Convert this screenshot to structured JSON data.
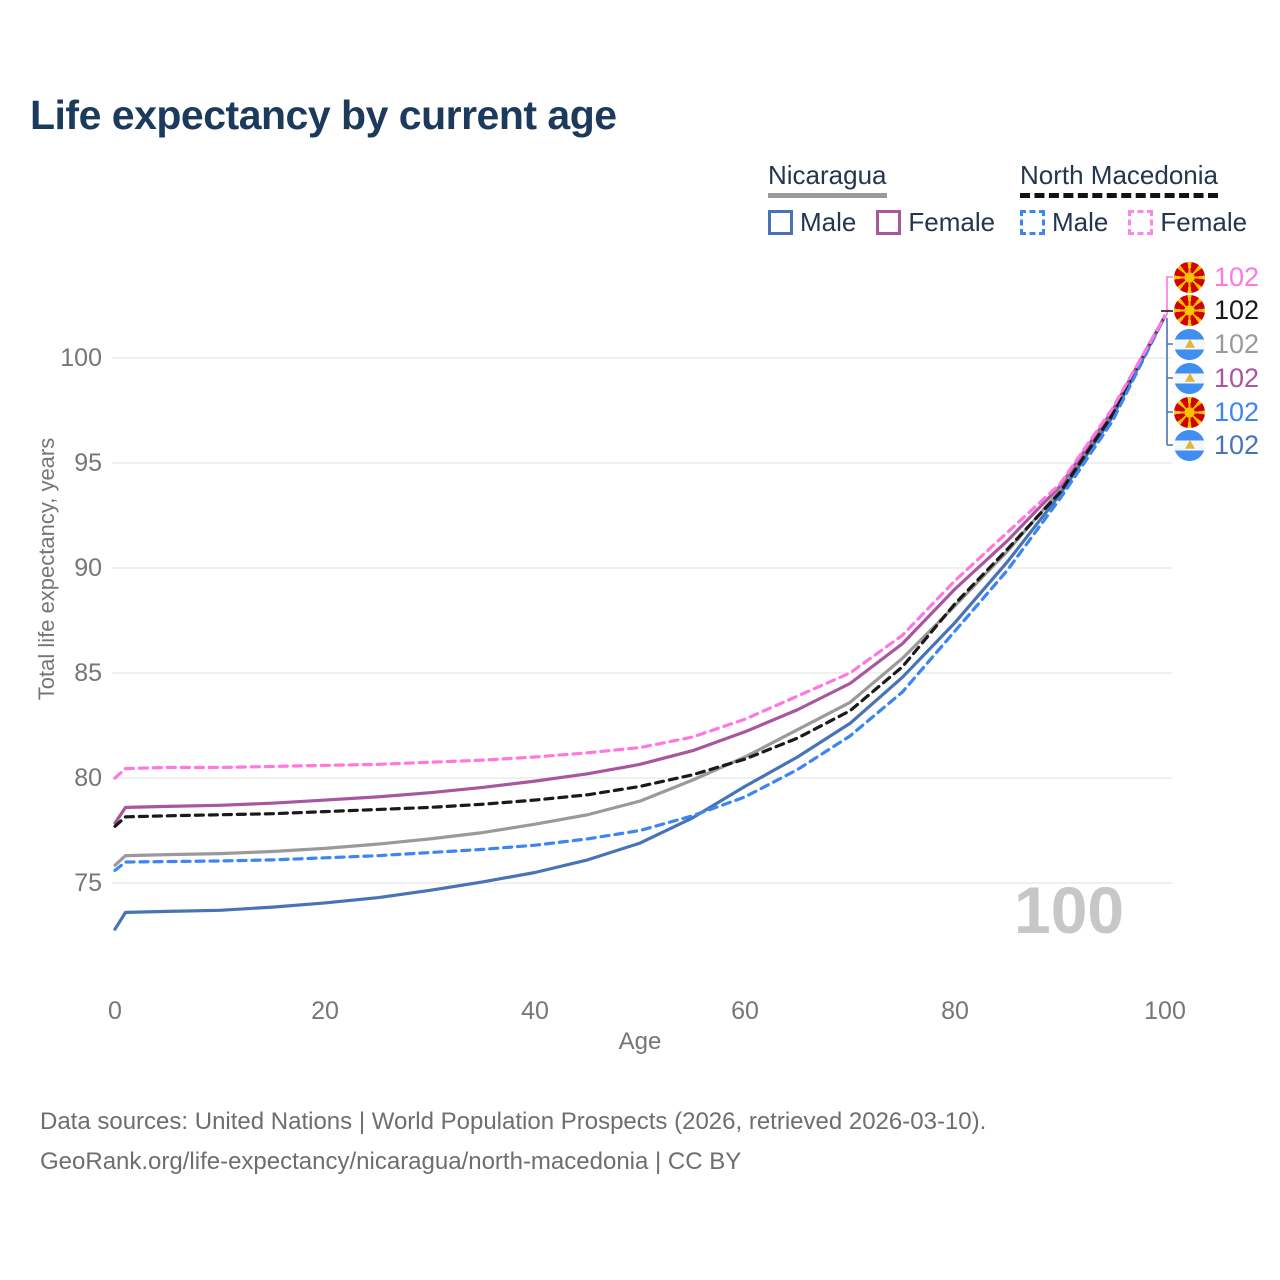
{
  "title": "Life expectancy by current age",
  "legend": {
    "groups": [
      {
        "country": "Nicaragua",
        "line_style": "solid",
        "rule_color": "#9a9a9a",
        "male_label": "Male",
        "female_label": "Female",
        "male_color": "#4873b6",
        "female_color": "#a8569e"
      },
      {
        "country": "North Macedonia",
        "line_style": "dashed",
        "rule_color": "#121212",
        "male_label": "Male",
        "female_label": "Female",
        "male_color": "#3d85f2",
        "female_color": "#ff85e3"
      }
    ]
  },
  "y_axis": {
    "title": "Total life expectancy, years",
    "ticks": [
      100,
      95,
      90,
      85,
      80,
      75
    ]
  },
  "x_axis": {
    "title": "Age",
    "ticks": [
      0,
      20,
      40,
      60,
      80,
      100
    ]
  },
  "watermark": "100",
  "end_labels": [
    {
      "country": "North Macedonia",
      "series": "Female",
      "value": "102",
      "color": "#ff77df"
    },
    {
      "country": "North Macedonia",
      "series": "Both sexes",
      "value": "102",
      "color": "#1a1a1a"
    },
    {
      "country": "Nicaragua",
      "series": "Both sexes",
      "value": "102",
      "color": "#9a9a9a"
    },
    {
      "country": "Nicaragua",
      "series": "Female",
      "value": "102",
      "color": "#a8569e"
    },
    {
      "country": "North Macedonia",
      "series": "Male",
      "value": "102",
      "color": "#3d85f2"
    },
    {
      "country": "Nicaragua",
      "series": "Male",
      "value": "102",
      "color": "#4873b6"
    }
  ],
  "footer": {
    "line1": "Data sources: United Nations | World Population Prospects (2026, retrieved 2026-03-10).",
    "line2": "GeoRank.org/life-expectancy/nicaragua/north-macedonia | CC BY"
  },
  "chart_data": {
    "type": "line",
    "title": "Life expectancy by current age",
    "xlabel": "Age",
    "ylabel": "Total life expectancy, years",
    "xlim": [
      0,
      100
    ],
    "ylim": [
      72,
      103
    ],
    "grid": "horizontal-only",
    "legend_position": "top-right",
    "x": [
      0,
      1,
      5,
      10,
      15,
      20,
      25,
      30,
      35,
      40,
      45,
      50,
      55,
      60,
      65,
      70,
      75,
      80,
      85,
      90,
      95,
      100
    ],
    "series": [
      {
        "name": "Nicaragua Both sexes",
        "country": "Nicaragua",
        "sex": "Both sexes",
        "color": "#9a9a9a",
        "dash": false,
        "values": [
          75.85,
          76.3,
          76.35,
          76.4,
          76.5,
          76.65,
          76.85,
          77.1,
          77.4,
          77.8,
          78.25,
          78.9,
          79.9,
          81.0,
          82.3,
          83.6,
          85.7,
          88.2,
          90.8,
          93.7,
          97.3,
          102
        ]
      },
      {
        "name": "Nicaragua Male",
        "country": "Nicaragua",
        "sex": "Male",
        "color": "#4873b6",
        "dash": false,
        "values": [
          72.8,
          73.6,
          73.65,
          73.7,
          73.85,
          74.05,
          74.3,
          74.65,
          75.05,
          75.5,
          76.1,
          76.9,
          78.1,
          79.6,
          81.0,
          82.6,
          84.8,
          87.4,
          90.3,
          93.5,
          97.2,
          102
        ]
      },
      {
        "name": "Nicaragua Female",
        "country": "Nicaragua",
        "sex": "Female",
        "color": "#a8569e",
        "dash": false,
        "values": [
          77.85,
          78.6,
          78.65,
          78.7,
          78.8,
          78.95,
          79.1,
          79.3,
          79.55,
          79.85,
          80.2,
          80.65,
          81.3,
          82.2,
          83.25,
          84.5,
          86.4,
          89.0,
          91.3,
          93.9,
          97.5,
          102
        ]
      },
      {
        "name": "North Macedonia Both sexes",
        "country": "North Macedonia",
        "sex": "Both sexes",
        "color": "#1a1a1a",
        "dash": true,
        "values": [
          77.7,
          78.15,
          78.2,
          78.25,
          78.3,
          78.4,
          78.5,
          78.6,
          78.75,
          78.95,
          79.2,
          79.6,
          80.15,
          80.9,
          81.9,
          83.2,
          85.3,
          88.3,
          90.9,
          93.6,
          97.3,
          102
        ]
      },
      {
        "name": "North Macedonia Male",
        "country": "North Macedonia",
        "sex": "Male",
        "color": "#3d85f2",
        "dash": true,
        "values": [
          75.6,
          76.0,
          76.02,
          76.05,
          76.1,
          76.2,
          76.3,
          76.45,
          76.6,
          76.8,
          77.1,
          77.5,
          78.2,
          79.1,
          80.4,
          82.0,
          84.1,
          87.0,
          89.9,
          93.3,
          97.0,
          102
        ]
      },
      {
        "name": "North Macedonia Female",
        "country": "North Macedonia",
        "sex": "Female",
        "color": "#ff77df",
        "dash": true,
        "values": [
          80.0,
          80.45,
          80.5,
          80.5,
          80.55,
          80.6,
          80.65,
          80.75,
          80.85,
          81.0,
          81.2,
          81.45,
          81.95,
          82.8,
          83.9,
          85.0,
          86.8,
          89.4,
          91.7,
          94.0,
          97.6,
          102
        ]
      }
    ]
  }
}
